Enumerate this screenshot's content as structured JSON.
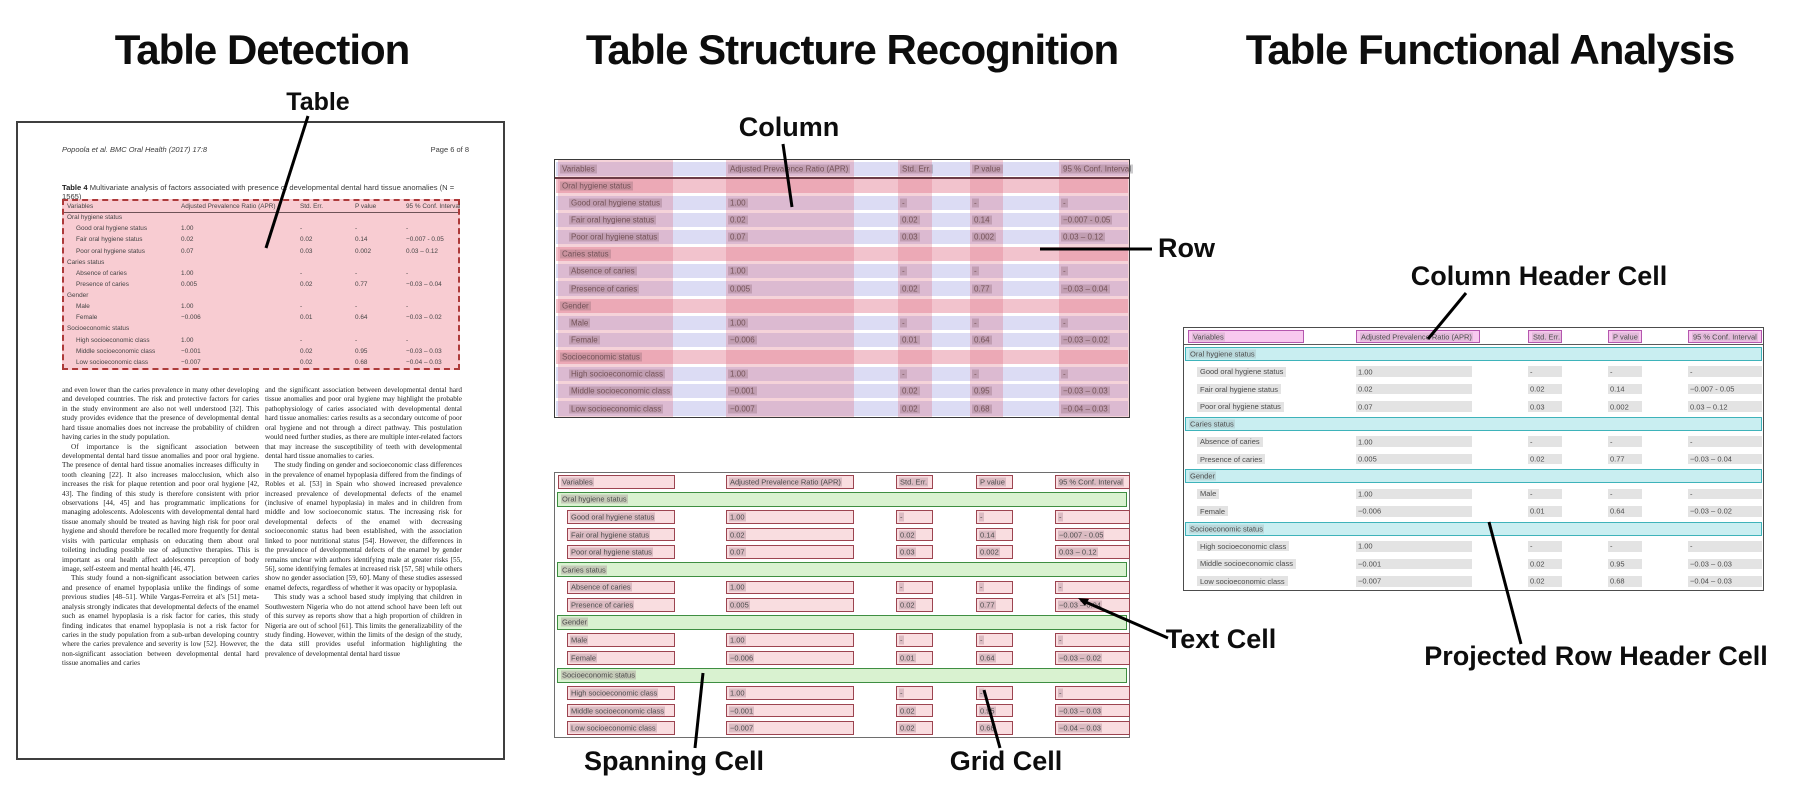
{
  "panels": {
    "detection": {
      "title": "Table Detection",
      "annotation_table": "Table"
    },
    "structure": {
      "title": "Table Structure Recognition",
      "annotations": {
        "column": "Column",
        "row": "Row",
        "spanning_cell": "Spanning Cell",
        "grid_cell": "Grid Cell",
        "text_cell": "Text Cell"
      }
    },
    "functional": {
      "title": "Table Functional Analysis",
      "annotations": {
        "column_header_cell": "Column Header Cell",
        "projected_row_header_cell": "Projected Row Header Cell"
      }
    }
  },
  "document": {
    "header_left": "Popoola et al. BMC Oral Health  (2017) 17:8",
    "header_right": "Page 6 of 8",
    "caption_label": "Table 4",
    "caption_text": " Multivariate analysis of factors associated with presence of developmental dental hard tissue anomalies (N = 1565)",
    "body_col1_paras": [
      "and even lower than the caries prevalence in many other developing and developed countries. The risk and protective factors for caries in the study environment are also not well understood [32]. This study provides evidence that the presence of developmental dental hard tissue anomalies does not increase the probability of children having caries in the study population.",
      "Of importance is the significant association between developmental dental hard tissue anomalies and poor oral hygiene. The presence of dental hard tissue anomalies increases difficulty in tooth cleaning [22]. It also increases malocclusion, which also increases the risk for plaque retention and poor oral hygiene [42, 43]. The finding of this study is therefore consistent with prior observations [44, 45] and has programmatic implications for managing adolescents. Adolescents with developmental dental hard tissue anomaly should be treated as having high risk for poor oral hygiene and should therefore be recalled more frequently for dental visits with particular emphasis on educating them about oral toileting including possible use of adjunctive therapies. This is important as oral health affect adolescents perception of body image, self-esteem and mental health [46, 47].",
      "This study found a non-significant association between caries and presence of enamel hypoplasia unlike the findings of some previous studies [48–51]. While Vargas-Ferreira et al's [51] meta-analysis strongly indicates that developmental defects of the enamel such as enamel hypoplasia is a risk factor for caries, this study finding indicates that enamel hypoplasia is not a risk factor for caries in the study population from a sub-urban developing country where the caries prevalence and severity is low [52]. However, the non-significant association between developmental dental hard tissue anomalies and caries"
    ],
    "body_col2_paras": [
      "and the significant association between developmental dental hard tissue anomalies and poor oral hygiene may highlight the probable pathophysiology of caries associated with developmental dental hard tissue anomalies: caries results as a secondary outcome of poor oral hygiene and not through a direct pathway. This postulation would need further studies, as there are multiple inter-related factors that may increase the susceptibility of teeth with developmental dental hard tissue anomalies to caries.",
      "The study finding on gender and socioeconomic class differences in the prevalence of enamel hypoplasia differed from the findings of Robles et al. [53] in Spain who showed increased prevalence increased prevalence of developmental defects of the enamel (inclusive of enamel hypoplasia) in males and in children from middle and low socioeconomic status. The increasing risk for developmental defects of the enamel with decreasing socioeconomic status had been established, with the association linked to poor nutritional status [54]. However, the differences in the prevalence of developmental defects of the enamel by gender remains unclear with authors identifying male at greater risks [55, 56], some identifying females at increased risk [57, 58] while others show no gender association [59, 60]. Many of these studies assessed enamel defects, regardless of whether it was opacity or hypoplasia.",
      "This study was a school based study implying that children in Southwestern Nigeria who do not attend school have been left out of this survey as reports show that a high proportion of children in Nigeria are out of school [61]. This limits the generalizability of the study finding. However, within the limits of the design of the study, the data still provides useful information highlighting the prevalence of developmental dental hard tissue"
    ]
  },
  "table": {
    "rows": [
      {
        "type": "header",
        "cells": [
          "Variables",
          "Adjusted Prevalence Ratio (APR)",
          "Std. Err.",
          "P value",
          "95 % Conf. Interval"
        ]
      },
      {
        "type": "section",
        "cells": [
          "Oral hygiene status"
        ]
      },
      {
        "type": "data",
        "cells": [
          "Good oral hygiene status",
          "1.00",
          "-",
          "-",
          "-"
        ]
      },
      {
        "type": "data",
        "cells": [
          "Fair oral hygiene status",
          "0.02",
          "0.02",
          "0.14",
          "−0.007 - 0.05"
        ]
      },
      {
        "type": "data",
        "cells": [
          "Poor oral hygiene status",
          "0.07",
          "0.03",
          "0.002",
          "0.03 – 0.12"
        ]
      },
      {
        "type": "section",
        "cells": [
          "Caries status"
        ]
      },
      {
        "type": "data",
        "cells": [
          "Absence of caries",
          "1.00",
          "-",
          "-",
          "-"
        ]
      },
      {
        "type": "data",
        "cells": [
          "Presence of caries",
          "0.005",
          "0.02",
          "0.77",
          "−0.03 – 0.04"
        ]
      },
      {
        "type": "section",
        "cells": [
          "Gender"
        ]
      },
      {
        "type": "data",
        "cells": [
          "Male",
          "1.00",
          "-",
          "-",
          "-"
        ]
      },
      {
        "type": "data",
        "cells": [
          "Female",
          "−0.006",
          "0.01",
          "0.64",
          "−0.03 – 0.02"
        ]
      },
      {
        "type": "section",
        "cells": [
          "Socioeconomic status"
        ]
      },
      {
        "type": "data",
        "cells": [
          "High socioeconomic class",
          "1.00",
          "-",
          "-",
          "-"
        ]
      },
      {
        "type": "data",
        "cells": [
          "Middle socioeconomic class",
          "−0.001",
          "0.02",
          "0.95",
          "−0.03 – 0.03"
        ]
      },
      {
        "type": "data",
        "cells": [
          "Low socioeconomic class",
          "−0.007",
          "0.02",
          "0.68",
          "−0.04 – 0.03"
        ]
      }
    ]
  },
  "colors": {
    "detection_fill": "rgba(242,153,165,0.50)",
    "detection_border": "#ad3a3a",
    "row_band": "#dcdcf4",
    "row_band_section": "#f2c3cd",
    "column_band": "rgba(222,108,130,0.30)",
    "token_highlight": "rgba(110,105,115,0.35)",
    "cell_token": "rgba(150,110,125,0.30)",
    "grid_cell_fill": "#f9dde0",
    "grid_cell_border": "#9c4450",
    "spanning_fill": "#d9f2d0",
    "spanning_border": "#3e8e41",
    "header_cell_fill": "#f8c9ef",
    "header_cell_border": "#b457ae",
    "projected_fill": "#c9eef1",
    "projected_border": "#3eb3ba",
    "text_box_gray": "#e3e3e3"
  }
}
